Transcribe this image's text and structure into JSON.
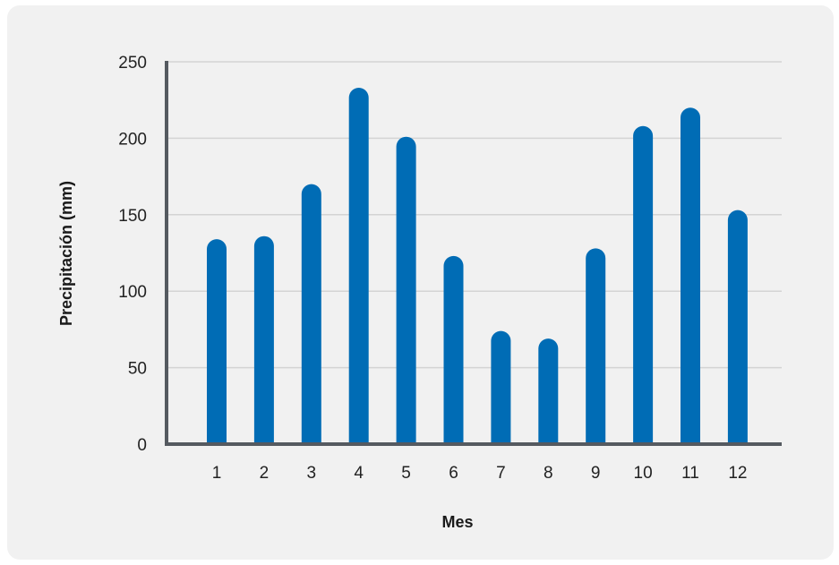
{
  "chart_data": {
    "type": "bar",
    "categories": [
      "1",
      "2",
      "3",
      "4",
      "5",
      "6",
      "7",
      "8",
      "9",
      "10",
      "11",
      "12"
    ],
    "values": [
      134,
      136,
      170,
      233,
      201,
      123,
      74,
      69,
      128,
      208,
      220,
      153
    ],
    "xlabel": "Mes",
    "ylabel": "Precipitación (mm)",
    "ylim": [
      0,
      250
    ],
    "yticks": [
      0,
      50,
      100,
      150,
      200,
      250
    ],
    "grid": true,
    "colors": {
      "bar": "#006cb5",
      "axis": "#555a60",
      "grid": "#d4d4d4",
      "background": "#f1f1f1"
    }
  }
}
